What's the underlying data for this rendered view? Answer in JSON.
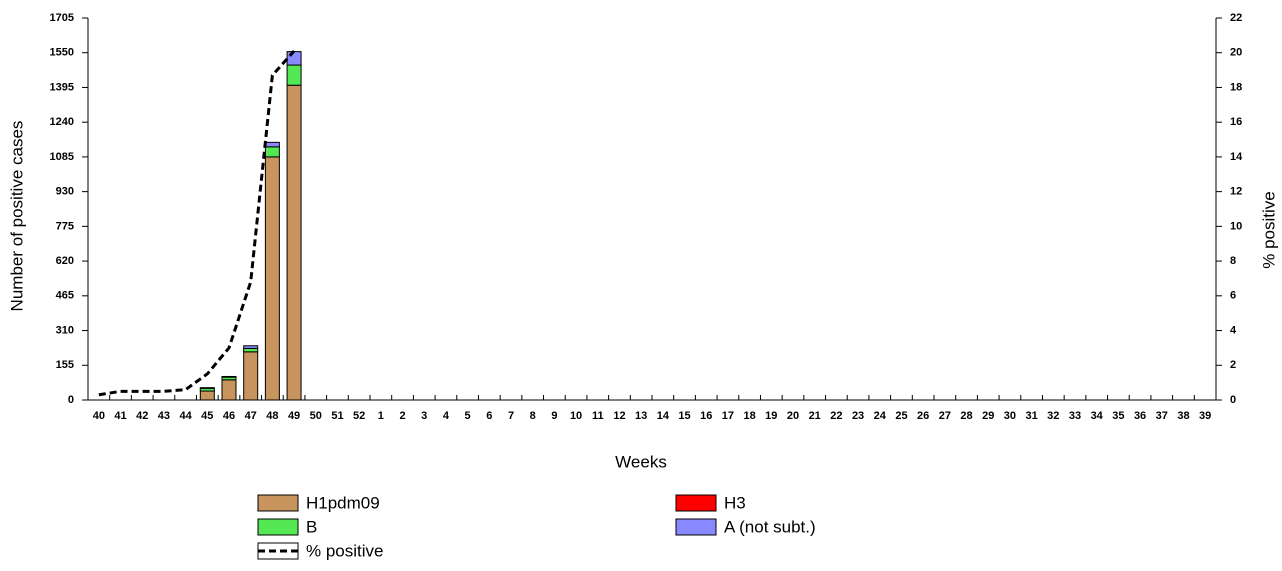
{
  "chart_data": {
    "type": "bar",
    "stacked": true,
    "x_label": "Weeks",
    "y_label": "Number of positive cases",
    "y2_label": "% positive",
    "categories": [
      "40",
      "41",
      "42",
      "43",
      "44",
      "45",
      "46",
      "47",
      "48",
      "49",
      "50",
      "51",
      "52",
      "1",
      "2",
      "3",
      "4",
      "5",
      "6",
      "7",
      "8",
      "9",
      "10",
      "11",
      "12",
      "13",
      "14",
      "15",
      "16",
      "17",
      "18",
      "19",
      "20",
      "21",
      "22",
      "23",
      "24",
      "25",
      "26",
      "27",
      "28",
      "29",
      "30",
      "31",
      "32",
      "33",
      "34",
      "35",
      "36",
      "37",
      "38",
      "39"
    ],
    "ylim": [
      0,
      1705
    ],
    "yticks": [
      0,
      155,
      310,
      465,
      620,
      775,
      930,
      1085,
      1240,
      1395,
      1550,
      1705
    ],
    "y2lim": [
      0,
      22
    ],
    "y2ticks": [
      0,
      2,
      4,
      6,
      8,
      10,
      12,
      14,
      16,
      18,
      20,
      22
    ],
    "series": [
      {
        "name": "H1pdm09",
        "color": "#c8955e",
        "values": [
          0,
          0,
          0,
          0,
          0,
          40,
          90,
          215,
          1085,
          1405,
          null,
          null,
          null,
          null,
          null,
          null,
          null,
          null,
          null,
          null,
          null,
          null,
          null,
          null,
          null,
          null,
          null,
          null,
          null,
          null,
          null,
          null,
          null,
          null,
          null,
          null,
          null,
          null,
          null,
          null,
          null,
          null,
          null,
          null,
          null,
          null,
          null,
          null,
          null,
          null,
          null,
          null
        ]
      },
      {
        "name": "H3",
        "color": "#ff0000",
        "values": [
          0,
          0,
          0,
          0,
          0,
          0,
          0,
          0,
          0,
          0,
          null,
          null,
          null,
          null,
          null,
          null,
          null,
          null,
          null,
          null,
          null,
          null,
          null,
          null,
          null,
          null,
          null,
          null,
          null,
          null,
          null,
          null,
          null,
          null,
          null,
          null,
          null,
          null,
          null,
          null,
          null,
          null,
          null,
          null,
          null,
          null,
          null,
          null,
          null,
          null,
          null,
          null
        ]
      },
      {
        "name": "B",
        "color": "#55e855",
        "values": [
          0,
          0,
          0,
          0,
          0,
          12,
          12,
          15,
          45,
          90,
          null,
          null,
          null,
          null,
          null,
          null,
          null,
          null,
          null,
          null,
          null,
          null,
          null,
          null,
          null,
          null,
          null,
          null,
          null,
          null,
          null,
          null,
          null,
          null,
          null,
          null,
          null,
          null,
          null,
          null,
          null,
          null,
          null,
          null,
          null,
          null,
          null,
          null,
          null,
          null,
          null,
          null
        ]
      },
      {
        "name": "A (not subt.)",
        "color": "#8888ff",
        "values": [
          0,
          0,
          0,
          0,
          0,
          3,
          3,
          12,
          20,
          60,
          null,
          null,
          null,
          null,
          null,
          null,
          null,
          null,
          null,
          null,
          null,
          null,
          null,
          null,
          null,
          null,
          null,
          null,
          null,
          null,
          null,
          null,
          null,
          null,
          null,
          null,
          null,
          null,
          null,
          null,
          null,
          null,
          null,
          null,
          null,
          null,
          null,
          null,
          null,
          null,
          null,
          null
        ]
      },
      {
        "name": "% positive",
        "type": "line",
        "axis": "y2",
        "color": "#000000",
        "dashed": true,
        "values": [
          0.3,
          0.5,
          0.5,
          0.5,
          0.6,
          1.5,
          3,
          6.8,
          18.7,
          20.1,
          null,
          null,
          null,
          null,
          null,
          null,
          null,
          null,
          null,
          null,
          null,
          null,
          null,
          null,
          null,
          null,
          null,
          null,
          null,
          null,
          null,
          null,
          null,
          null,
          null,
          null,
          null,
          null,
          null,
          null,
          null,
          null,
          null,
          null,
          null,
          null,
          null,
          null,
          null,
          null,
          null,
          null
        ]
      }
    ]
  }
}
